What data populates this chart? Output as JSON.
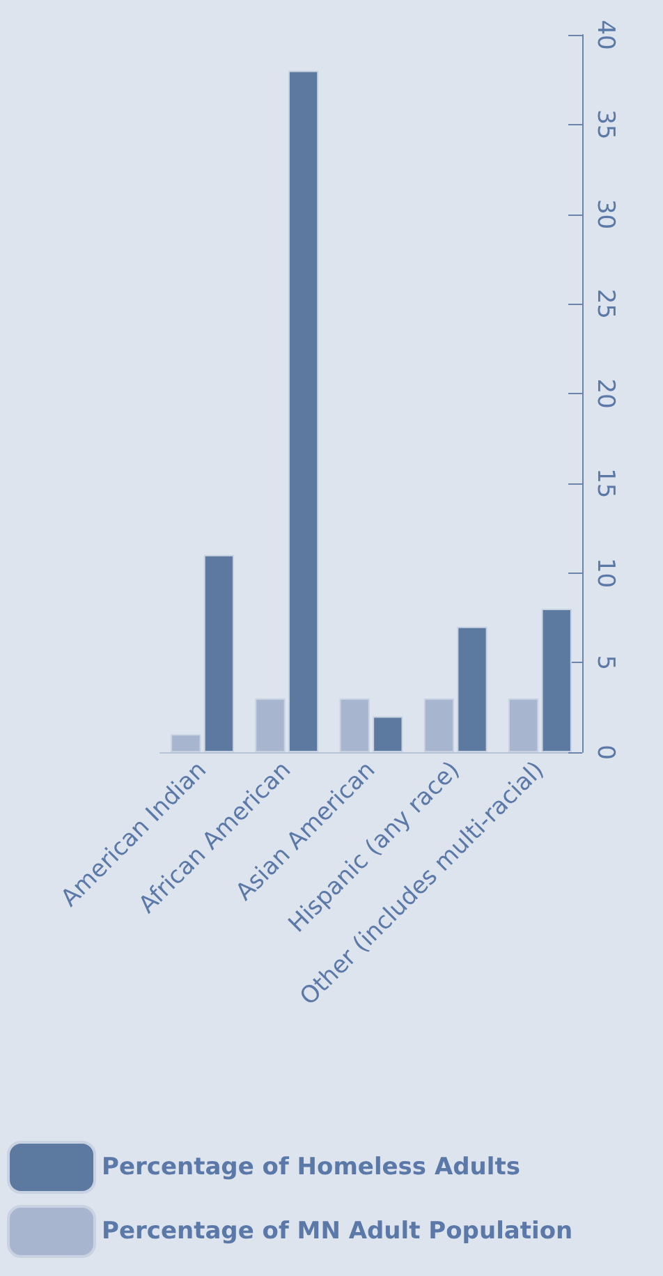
{
  "chart_data": {
    "type": "bar",
    "categories": [
      "American Indian",
      "African American",
      "Asian American",
      "Hispanic (any race)",
      "Other (includes multi-racial)"
    ],
    "series": [
      {
        "name": "Percentage of MN Adult Population",
        "color": "#a8b5cf",
        "values": [
          1,
          3,
          3,
          3,
          3
        ]
      },
      {
        "name": "Percentage of Homeless Adults",
        "color": "#5c7aa0",
        "values": [
          11,
          38,
          2,
          7,
          8
        ]
      }
    ],
    "ylim": [
      0,
      40
    ],
    "yticks": [
      0,
      5,
      10,
      15,
      20,
      25,
      30,
      35,
      40
    ],
    "grid": false,
    "legend": "bottom"
  }
}
